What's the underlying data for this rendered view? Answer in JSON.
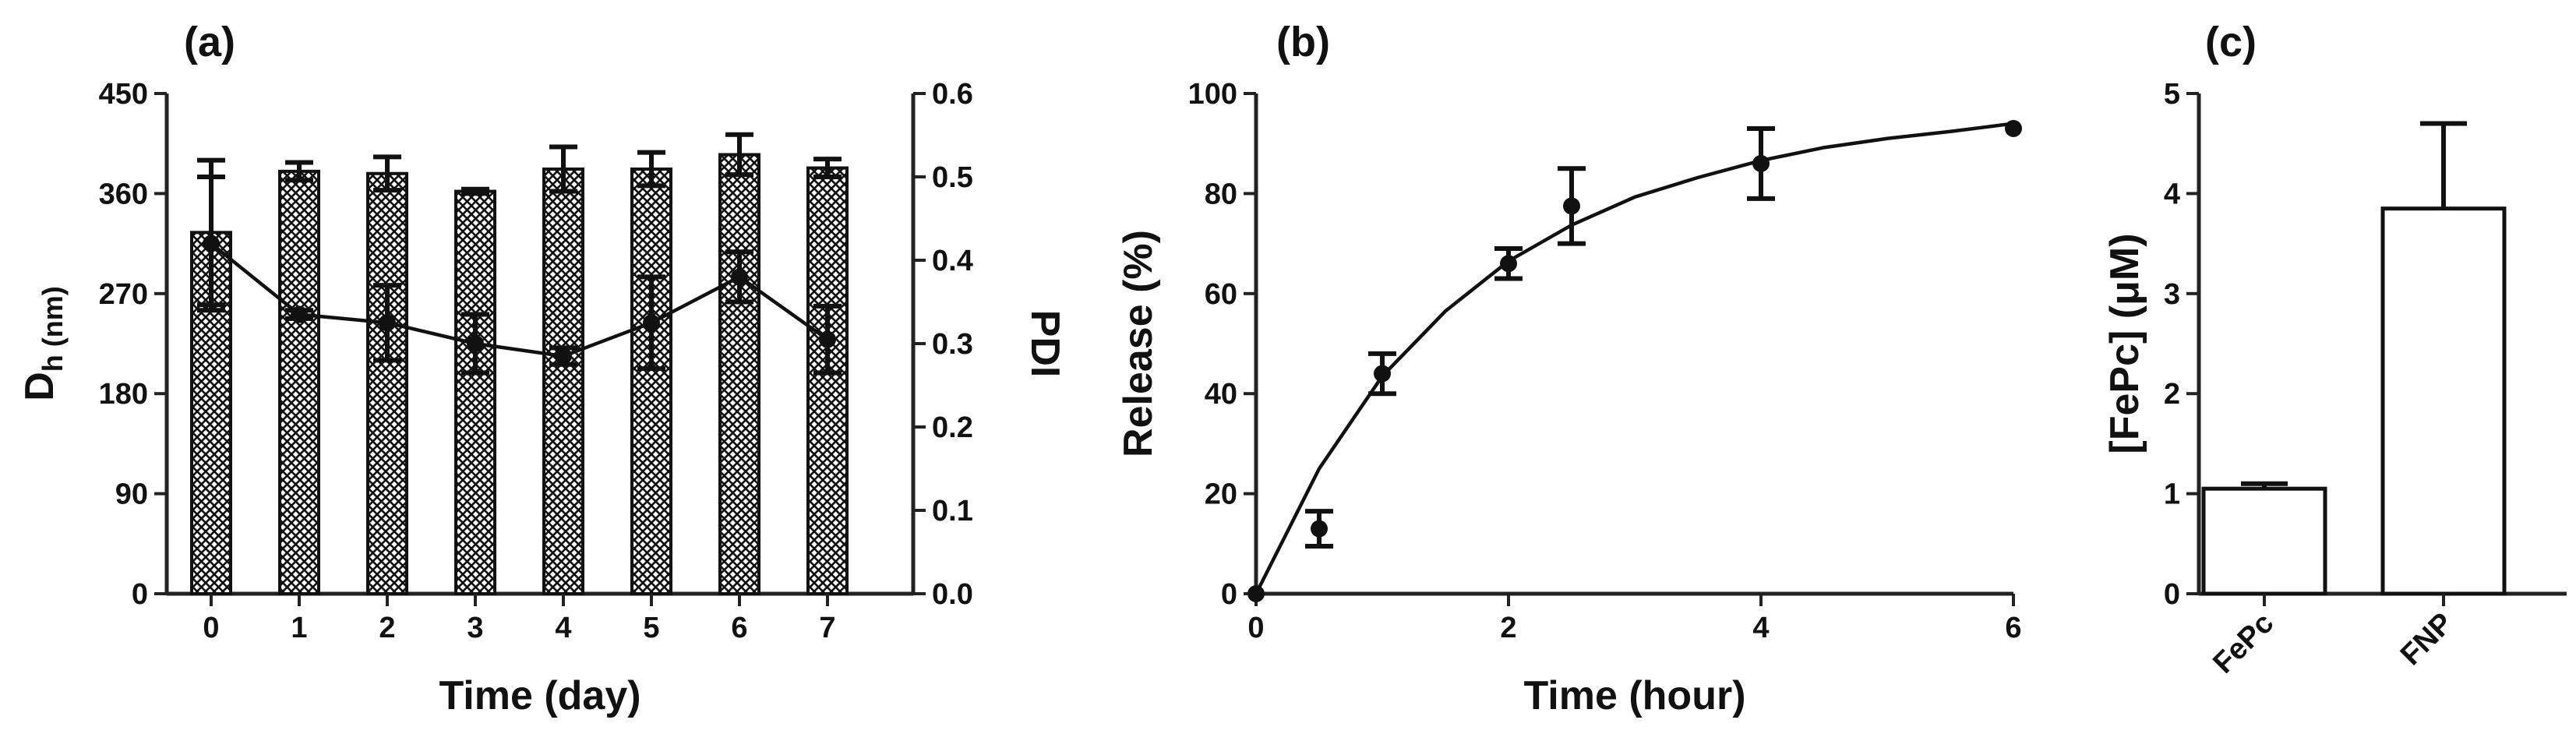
{
  "chart_data": [
    {
      "panel": "(a)",
      "type": "bar",
      "categories": [
        "0",
        "1",
        "2",
        "3",
        "4",
        "5",
        "6",
        "7"
      ],
      "xlabel": "Time (day)",
      "ylabel_main": "D",
      "ylabel_sub": "h (nm)",
      "ylim": [
        0,
        450
      ],
      "yticks": [
        "0",
        "90",
        "180",
        "270",
        "360",
        "450"
      ],
      "y2label": "PDI",
      "y2lim": [
        0,
        0.6
      ],
      "y2ticks": [
        "0.0",
        "0.1",
        "0.2",
        "0.3",
        "0.4",
        "0.5",
        "0.6"
      ],
      "series": [
        {
          "name": "Dh",
          "type": "bar",
          "axis": "left",
          "values": [
            325,
            380,
            378,
            362,
            382,
            382,
            395,
            383
          ],
          "errors": [
            65,
            8,
            15,
            2,
            20,
            15,
            18,
            8
          ]
        },
        {
          "name": "PDI",
          "type": "line",
          "axis": "right",
          "values": [
            0.42,
            0.335,
            0.325,
            0.3,
            0.285,
            0.325,
            0.38,
            0.305
          ],
          "errors": [
            0.08,
            0.005,
            0.045,
            0.035,
            0.01,
            0.055,
            0.03,
            0.04
          ]
        }
      ]
    },
    {
      "panel": "(b)",
      "type": "scatter",
      "xlabel": "Time (hour)",
      "ylabel": "Release (%)",
      "xlim": [
        0,
        6
      ],
      "ylim": [
        0,
        100
      ],
      "xticks": [
        "0",
        "2",
        "4",
        "6"
      ],
      "yticks": [
        "0",
        "20",
        "40",
        "60",
        "80",
        "100"
      ],
      "series": [
        {
          "name": "Release",
          "x": [
            0,
            0.5,
            1,
            2,
            2.5,
            4,
            6
          ],
          "y": [
            0,
            13,
            44,
            66,
            77.5,
            86,
            93
          ],
          "errors": [
            0,
            3.5,
            4,
            3,
            7.5,
            7,
            0
          ]
        }
      ],
      "fit": {
        "type": "exponential",
        "x": [
          0,
          0.5,
          1,
          1.5,
          2,
          2.5,
          3,
          3.5,
          4,
          4.5,
          5,
          5.5,
          6
        ],
        "y": [
          0,
          25,
          43.5,
          56.5,
          66.5,
          73.7,
          79.3,
          83.2,
          86.6,
          89.2,
          91,
          92.4,
          94
        ]
      }
    },
    {
      "panel": "(c)",
      "type": "bar",
      "categories": [
        "FePc",
        "FNP"
      ],
      "values": [
        1.05,
        3.85
      ],
      "errors": [
        0.05,
        0.85
      ],
      "ylabel": "[FePc] (μM)",
      "ylim": [
        0,
        5
      ],
      "yticks": [
        "0",
        "1",
        "2",
        "3",
        "4",
        "5"
      ]
    }
  ]
}
